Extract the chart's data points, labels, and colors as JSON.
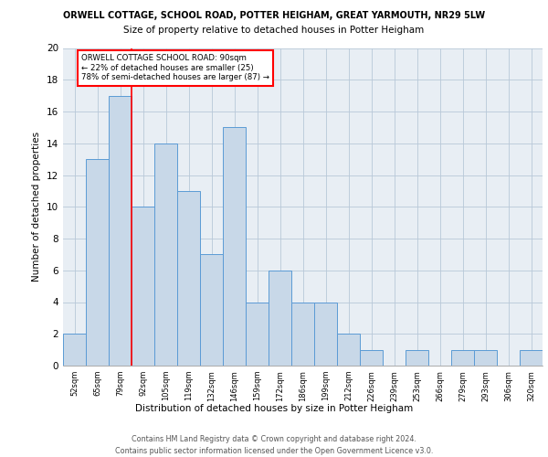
{
  "title_top": "ORWELL COTTAGE, SCHOOL ROAD, POTTER HEIGHAM, GREAT YARMOUTH, NR29 5LW",
  "title_main": "Size of property relative to detached houses in Potter Heigham",
  "xlabel": "Distribution of detached houses by size in Potter Heigham",
  "ylabel": "Number of detached properties",
  "categories": [
    "52sqm",
    "65sqm",
    "79sqm",
    "92sqm",
    "105sqm",
    "119sqm",
    "132sqm",
    "146sqm",
    "159sqm",
    "172sqm",
    "186sqm",
    "199sqm",
    "212sqm",
    "226sqm",
    "239sqm",
    "253sqm",
    "266sqm",
    "279sqm",
    "293sqm",
    "306sqm",
    "320sqm"
  ],
  "values": [
    2,
    13,
    17,
    10,
    14,
    11,
    7,
    15,
    4,
    6,
    4,
    4,
    2,
    1,
    0,
    1,
    0,
    1,
    1,
    0,
    1
  ],
  "bar_color": "#c8d8e8",
  "bar_edge_color": "#5b9bd5",
  "red_line_index": 2.5,
  "annotation_text": "ORWELL COTTAGE SCHOOL ROAD: 90sqm\n← 22% of detached houses are smaller (25)\n78% of semi-detached houses are larger (87) →",
  "ylim": [
    0,
    20
  ],
  "yticks": [
    0,
    2,
    4,
    6,
    8,
    10,
    12,
    14,
    16,
    18,
    20
  ],
  "footer_line1": "Contains HM Land Registry data © Crown copyright and database right 2024.",
  "footer_line2": "Contains public sector information licensed under the Open Government Licence v3.0.",
  "background_color": "#e8eef4"
}
